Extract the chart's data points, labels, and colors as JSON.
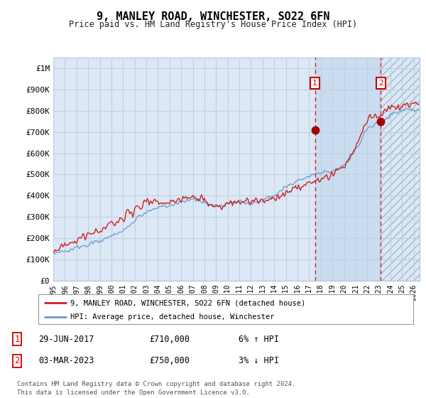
{
  "title": "9, MANLEY ROAD, WINCHESTER, SO22 6FN",
  "subtitle": "Price paid vs. HM Land Registry's House Price Index (HPI)",
  "ylabel_ticks": [
    "£0",
    "£100K",
    "£200K",
    "£300K",
    "£400K",
    "£500K",
    "£600K",
    "£700K",
    "£800K",
    "£900K",
    "£1M"
  ],
  "ytick_vals": [
    0,
    100000,
    200000,
    300000,
    400000,
    500000,
    600000,
    700000,
    800000,
    900000,
    1000000
  ],
  "ylim": [
    0,
    1050000
  ],
  "xlim_start": 1995.0,
  "xlim_end": 2026.5,
  "background_color": "#ffffff",
  "plot_bg_color": "#dce8f5",
  "grid_color": "#c0cfe0",
  "hpi_line_color": "#6699cc",
  "price_line_color": "#cc2222",
  "marker1_x": 2017.5,
  "marker1_y": 710000,
  "marker2_x": 2023.17,
  "marker2_y": 750000,
  "annotation1": "29-JUN-2017",
  "annotation1_price": "£710,000",
  "annotation1_hpi": "6% ↑ HPI",
  "annotation2": "03-MAR-2023",
  "annotation2_price": "£750,000",
  "annotation2_hpi": "3% ↓ HPI",
  "legend_line1": "9, MANLEY ROAD, WINCHESTER, SO22 6FN (detached house)",
  "legend_line2": "HPI: Average price, detached house, Winchester",
  "footer": "Contains HM Land Registry data © Crown copyright and database right 2024.\nThis data is licensed under the Open Government Licence v3.0.",
  "xtick_years": [
    1995,
    1996,
    1997,
    1998,
    1999,
    2000,
    2001,
    2002,
    2003,
    2004,
    2005,
    2006,
    2007,
    2008,
    2009,
    2010,
    2011,
    2012,
    2013,
    2014,
    2015,
    2016,
    2017,
    2018,
    2019,
    2020,
    2021,
    2022,
    2023,
    2024,
    2025,
    2026
  ],
  "hpi_shading_start": 2017.5,
  "hpi_shading_end": 2023.17,
  "hatch_start": 2023.17,
  "hatch_end": 2026.5,
  "hpi_annual": {
    "1995": 130000,
    "1996": 138000,
    "1997": 155000,
    "1998": 173000,
    "1999": 192000,
    "2000": 213000,
    "2001": 240000,
    "2002": 285000,
    "2003": 318000,
    "2004": 340000,
    "2005": 345000,
    "2006": 360000,
    "2007": 385000,
    "2008": 365000,
    "2009": 345000,
    "2010": 368000,
    "2011": 370000,
    "2012": 365000,
    "2013": 380000,
    "2014": 405000,
    "2015": 435000,
    "2016": 470000,
    "2017": 490000,
    "2018": 500000,
    "2019": 515000,
    "2020": 535000,
    "2021": 610000,
    "2022": 710000,
    "2023": 740000,
    "2024": 775000,
    "2025": 795000,
    "2026": 805000
  },
  "price_annual": {
    "1995": 135000,
    "1996": 145000,
    "1997": 165000,
    "1998": 185000,
    "1999": 205000,
    "2000": 225000,
    "2001": 255000,
    "2002": 300000,
    "2003": 335000,
    "2004": 360000,
    "2005": 365000,
    "2006": 382000,
    "2007": 405000,
    "2008": 380000,
    "2009": 358000,
    "2010": 382000,
    "2011": 385000,
    "2012": 378000,
    "2013": 395000,
    "2014": 422000,
    "2015": 455000,
    "2016": 490000,
    "2017": 510000,
    "2018": 520000,
    "2019": 535000,
    "2020": 558000,
    "2021": 635000,
    "2022": 740000,
    "2023": 768000,
    "2024": 800000,
    "2025": 818000,
    "2026": 825000
  }
}
